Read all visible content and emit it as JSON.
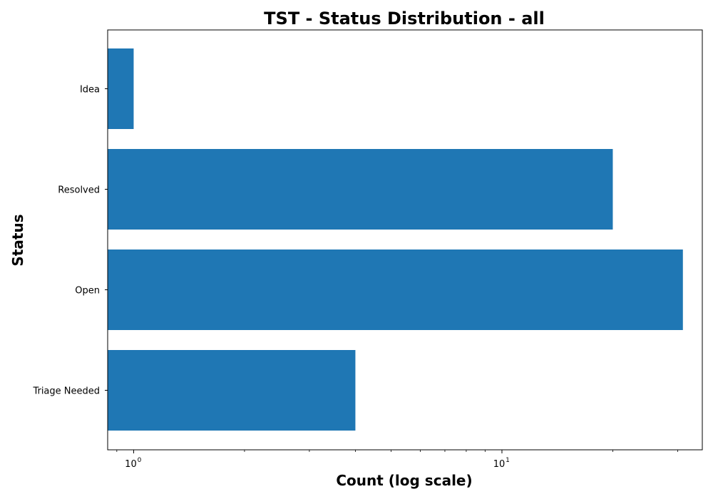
{
  "chart_data": {
    "type": "bar",
    "orientation": "horizontal",
    "title": "TST - Status Distribution - all",
    "xlabel": "Count (log scale)",
    "ylabel": "Status",
    "x_scale": "log",
    "xlim": [
      0.85,
      35
    ],
    "x_ticks": [
      {
        "base": "10",
        "exp": "0",
        "value": 1
      },
      {
        "base": "10",
        "exp": "1",
        "value": 10
      }
    ],
    "categories": [
      "Idea",
      "Resolved",
      "Open",
      "Triage Needed"
    ],
    "values": [
      1,
      20,
      31,
      4
    ],
    "bar_color": "#1f77b4",
    "grid": false,
    "legend": "none"
  }
}
